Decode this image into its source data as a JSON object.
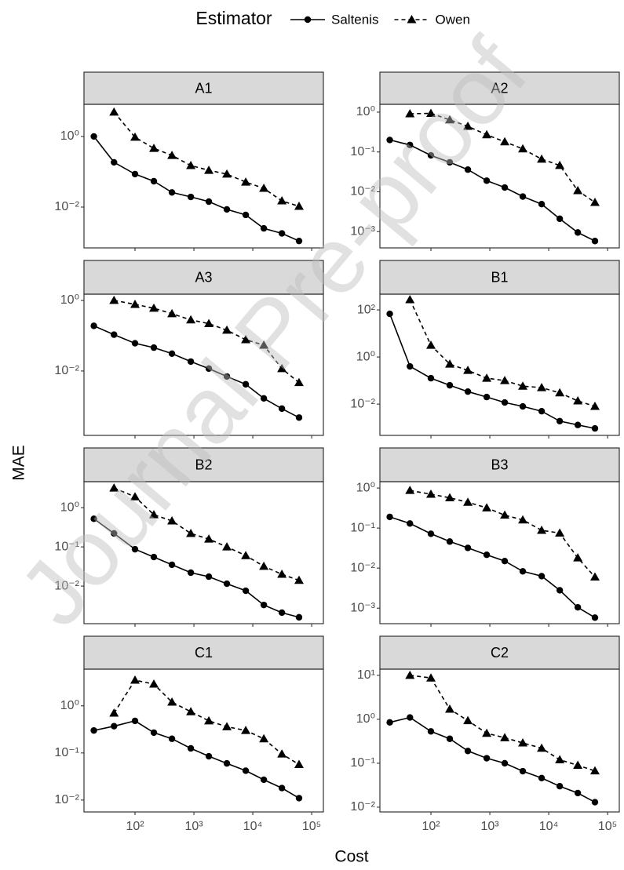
{
  "legend": {
    "title": "Estimator"
  },
  "x_label": "Cost",
  "y_label": "MAE",
  "watermark": "Journal Pre-proof",
  "chart_data": [
    {
      "type": "line",
      "title": "A1",
      "log_x": true,
      "log_y": true,
      "x": [
        20,
        44,
        100,
        209,
        424,
        886,
        1793,
        3630,
        7590,
        15400,
        31200,
        61000
      ],
      "xlim": [
        13.6,
        158000
      ],
      "xticks": [
        {
          "value": 100,
          "label": "10²"
        },
        {
          "value": 1000,
          "label": "10³"
        },
        {
          "value": 10000,
          "label": "10⁴"
        },
        {
          "value": 100000,
          "label": "10⁵"
        }
      ],
      "ylim": [
        0.0007,
        8.1
      ],
      "yticks": [
        {
          "value": 0.01,
          "label": "10⁻²"
        },
        {
          "value": 1,
          "label": "10⁰"
        }
      ],
      "series": [
        {
          "name": "Saltenis",
          "color": "#000000",
          "marker": "circle",
          "dash": "solid",
          "values": [
            1.0,
            0.185,
            0.086,
            0.054,
            0.026,
            0.0194,
            0.0143,
            0.0086,
            0.006,
            0.0025,
            0.0018,
            0.0011
          ]
        },
        {
          "name": "Owen",
          "color": "#000000",
          "marker": "triangle",
          "dash": "dashed",
          "values": [
            null,
            4.9,
            0.95,
            0.46,
            0.29,
            0.15,
            0.11,
            0.086,
            0.051,
            0.034,
            0.015,
            0.0105
          ]
        }
      ]
    },
    {
      "type": "line",
      "title": "A2",
      "log_x": true,
      "log_y": true,
      "x": [
        20,
        44,
        100,
        209,
        424,
        886,
        1793,
        3630,
        7590,
        15400,
        31200,
        61000
      ],
      "xlim": [
        13.6,
        158000
      ],
      "xticks": [
        {
          "value": 100,
          "label": "10²"
        },
        {
          "value": 1000,
          "label": "10³"
        },
        {
          "value": 10000,
          "label": "10⁴"
        },
        {
          "value": 100000,
          "label": "10⁵"
        }
      ],
      "ylim": [
        0.00039,
        1.57
      ],
      "yticks": [
        {
          "value": 0.001,
          "label": "10⁻³"
        },
        {
          "value": 0.01,
          "label": "10⁻²"
        },
        {
          "value": 0.1,
          "label": "10⁻¹"
        },
        {
          "value": 1,
          "label": "10⁰"
        }
      ],
      "series": [
        {
          "name": "Saltenis",
          "color": "#000000",
          "marker": "circle",
          "dash": "solid",
          "values": [
            0.2,
            0.15,
            0.082,
            0.055,
            0.036,
            0.019,
            0.0128,
            0.0076,
            0.0049,
            0.0021,
            0.00095,
            0.00058
          ]
        },
        {
          "name": "Owen",
          "color": "#000000",
          "marker": "triangle",
          "dash": "dashed",
          "values": [
            null,
            0.91,
            0.93,
            0.64,
            0.44,
            0.27,
            0.18,
            0.12,
            0.066,
            0.046,
            0.0107,
            0.0054
          ]
        }
      ]
    },
    {
      "type": "line",
      "title": "A3",
      "log_x": true,
      "log_y": true,
      "x": [
        20,
        44,
        100,
        209,
        424,
        886,
        1793,
        3630,
        7590,
        15400,
        31200,
        61000
      ],
      "xlim": [
        13.6,
        158000
      ],
      "xticks": [
        {
          "value": 100,
          "label": "10²"
        },
        {
          "value": 1000,
          "label": "10³"
        },
        {
          "value": 10000,
          "label": "10⁴"
        },
        {
          "value": 100000,
          "label": "10⁵"
        }
      ],
      "ylim": [
        0.00015,
        1.5
      ],
      "yticks": [
        {
          "value": 0.01,
          "label": "10⁻²"
        },
        {
          "value": 1,
          "label": "10⁰"
        }
      ],
      "series": [
        {
          "name": "Saltenis",
          "color": "#000000",
          "marker": "circle",
          "dash": "solid",
          "values": [
            0.19,
            0.107,
            0.061,
            0.046,
            0.031,
            0.0185,
            0.0117,
            0.007,
            0.0042,
            0.00168,
            0.00086,
            0.00048
          ]
        },
        {
          "name": "Owen",
          "color": "#000000",
          "marker": "triangle",
          "dash": "dashed",
          "values": [
            null,
            1.0,
            0.77,
            0.6,
            0.42,
            0.28,
            0.22,
            0.143,
            0.077,
            0.054,
            0.0117,
            0.0047
          ]
        }
      ]
    },
    {
      "type": "line",
      "title": "B1",
      "log_x": true,
      "log_y": true,
      "x": [
        20,
        44,
        100,
        209,
        424,
        886,
        1793,
        3630,
        7590,
        15400,
        31200,
        61000
      ],
      "xlim": [
        13.6,
        158000
      ],
      "xticks": [
        {
          "value": 100,
          "label": "10²"
        },
        {
          "value": 1000,
          "label": "10³"
        },
        {
          "value": 10000,
          "label": "10⁴"
        },
        {
          "value": 100000,
          "label": "10⁵"
        }
      ],
      "ylim": [
        0.00047,
        465
      ],
      "yticks": [
        {
          "value": 0.01,
          "label": "10⁻²"
        },
        {
          "value": 1,
          "label": "10⁰"
        },
        {
          "value": 100,
          "label": "10²"
        }
      ],
      "series": [
        {
          "name": "Saltenis",
          "color": "#000000",
          "marker": "circle",
          "dash": "solid",
          "values": [
            68,
            0.4,
            0.126,
            0.063,
            0.034,
            0.02,
            0.0117,
            0.008,
            0.005,
            0.0019,
            0.0013,
            0.00093
          ]
        },
        {
          "name": "Owen",
          "color": "#000000",
          "marker": "triangle",
          "dash": "dashed",
          "values": [
            null,
            271,
            3.16,
            0.5,
            0.27,
            0.126,
            0.1,
            0.058,
            0.05,
            0.03,
            0.0137,
            0.008
          ]
        }
      ]
    },
    {
      "type": "line",
      "title": "B2",
      "log_x": true,
      "log_y": true,
      "x": [
        20,
        44,
        100,
        209,
        424,
        886,
        1793,
        3630,
        7590,
        15400,
        31200,
        61000
      ],
      "xlim": [
        13.6,
        158000
      ],
      "xticks": [
        {
          "value": 100,
          "label": "10²"
        },
        {
          "value": 1000,
          "label": "10³"
        },
        {
          "value": 10000,
          "label": "10⁴"
        },
        {
          "value": 100000,
          "label": "10⁵"
        }
      ],
      "ylim": [
        0.0011,
        4.6
      ],
      "yticks": [
        {
          "value": 0.01,
          "label": "10⁻²"
        },
        {
          "value": 0.1,
          "label": "10⁻¹"
        },
        {
          "value": 1,
          "label": "10⁰"
        }
      ],
      "series": [
        {
          "name": "Saltenis",
          "color": "#000000",
          "marker": "circle",
          "dash": "solid",
          "values": [
            0.52,
            0.22,
            0.087,
            0.055,
            0.035,
            0.022,
            0.0174,
            0.0115,
            0.0076,
            0.0033,
            0.0021,
            0.0016
          ]
        },
        {
          "name": "Owen",
          "color": "#000000",
          "marker": "triangle",
          "dash": "dashed",
          "values": [
            null,
            3.16,
            1.9,
            0.66,
            0.46,
            0.22,
            0.158,
            0.1,
            0.06,
            0.032,
            0.02,
            0.014
          ]
        }
      ]
    },
    {
      "type": "line",
      "title": "B3",
      "log_x": true,
      "log_y": true,
      "x": [
        20,
        44,
        100,
        209,
        424,
        886,
        1793,
        3630,
        7590,
        15400,
        31200,
        61000
      ],
      "xlim": [
        13.6,
        158000
      ],
      "xticks": [
        {
          "value": 100,
          "label": "10²"
        },
        {
          "value": 1000,
          "label": "10³"
        },
        {
          "value": 10000,
          "label": "10⁴"
        },
        {
          "value": 100000,
          "label": "10⁵"
        }
      ],
      "ylim": [
        0.00041,
        1.44
      ],
      "yticks": [
        {
          "value": 0.001,
          "label": "10⁻³"
        },
        {
          "value": 0.01,
          "label": "10⁻²"
        },
        {
          "value": 0.1,
          "label": "10⁻¹"
        },
        {
          "value": 1,
          "label": "10⁰"
        }
      ],
      "series": [
        {
          "name": "Saltenis",
          "color": "#000000",
          "marker": "circle",
          "dash": "solid",
          "values": [
            0.19,
            0.13,
            0.072,
            0.046,
            0.032,
            0.0215,
            0.015,
            0.0083,
            0.0063,
            0.0028,
            0.00105,
            0.00058
          ]
        },
        {
          "name": "Owen",
          "color": "#000000",
          "marker": "triangle",
          "dash": "dashed",
          "values": [
            null,
            0.87,
            0.7,
            0.57,
            0.44,
            0.32,
            0.21,
            0.16,
            0.088,
            0.075,
            0.018,
            0.006
          ]
        }
      ]
    },
    {
      "type": "line",
      "title": "C1",
      "log_x": true,
      "log_y": true,
      "x": [
        20,
        44,
        100,
        209,
        424,
        886,
        1793,
        3630,
        7590,
        15400,
        31200,
        61000
      ],
      "xlim": [
        13.6,
        158000
      ],
      "xticks": [
        {
          "value": 100,
          "label": "10²"
        },
        {
          "value": 1000,
          "label": "10³"
        },
        {
          "value": 10000,
          "label": "10⁴"
        },
        {
          "value": 100000,
          "label": "10⁵"
        }
      ],
      "ylim": [
        0.0056,
        6.0
      ],
      "yticks": [
        {
          "value": 0.01,
          "label": "10⁻²"
        },
        {
          "value": 0.1,
          "label": "10⁻¹"
        },
        {
          "value": 1,
          "label": "10⁰"
        }
      ],
      "series": [
        {
          "name": "Saltenis",
          "color": "#000000",
          "marker": "circle",
          "dash": "solid",
          "values": [
            0.3,
            0.37,
            0.48,
            0.27,
            0.2,
            0.125,
            0.085,
            0.06,
            0.042,
            0.027,
            0.018,
            0.011
          ]
        },
        {
          "name": "Owen",
          "color": "#000000",
          "marker": "triangle",
          "dash": "dashed",
          "values": [
            null,
            0.7,
            3.5,
            2.9,
            1.2,
            0.75,
            0.48,
            0.36,
            0.3,
            0.2,
            0.095,
            0.057
          ]
        }
      ]
    },
    {
      "type": "line",
      "title": "C2",
      "log_x": true,
      "log_y": true,
      "x": [
        20,
        44,
        100,
        209,
        424,
        886,
        1793,
        3630,
        7590,
        15400,
        31200,
        61000
      ],
      "xlim": [
        13.6,
        158000
      ],
      "xticks": [
        {
          "value": 100,
          "label": "10²"
        },
        {
          "value": 1000,
          "label": "10³"
        },
        {
          "value": 10000,
          "label": "10⁴"
        },
        {
          "value": 100000,
          "label": "10⁵"
        }
      ],
      "ylim": [
        0.0078,
        13.8
      ],
      "yticks": [
        {
          "value": 0.01,
          "label": "10⁻²"
        },
        {
          "value": 0.1,
          "label": "10⁻¹"
        },
        {
          "value": 1,
          "label": "10⁰"
        },
        {
          "value": 10,
          "label": "10¹"
        }
      ],
      "series": [
        {
          "name": "Saltenis",
          "color": "#000000",
          "marker": "circle",
          "dash": "solid",
          "values": [
            0.85,
            1.1,
            0.53,
            0.36,
            0.19,
            0.13,
            0.1,
            0.066,
            0.046,
            0.03,
            0.021,
            0.013
          ]
        },
        {
          "name": "Owen",
          "color": "#000000",
          "marker": "triangle",
          "dash": "dashed",
          "values": [
            null,
            10,
            8.7,
            1.7,
            0.93,
            0.48,
            0.38,
            0.29,
            0.22,
            0.12,
            0.09,
            0.067
          ]
        }
      ]
    }
  ]
}
